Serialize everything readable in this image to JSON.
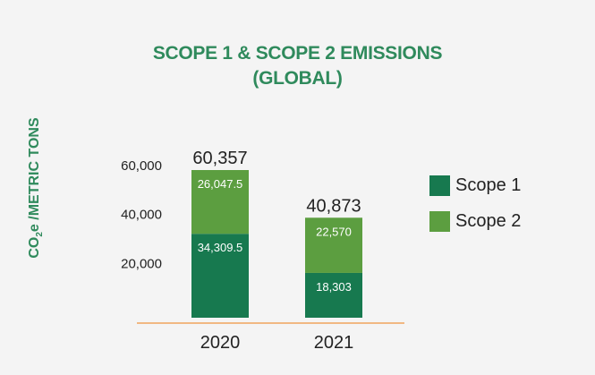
{
  "chart_data": {
    "type": "bar",
    "stacked": true,
    "title_lines": [
      "SCOPE 1 & SCOPE 2 EMISSIONS",
      "(GLOBAL)"
    ],
    "ylabel_main": "CO",
    "ylabel_sub": "2",
    "ylabel_rest": "e /METRIC TONS",
    "xlabel": "",
    "categories": [
      "2020",
      "2021"
    ],
    "yticks": [
      20000,
      40000,
      60000
    ],
    "ytick_labels": [
      "20,000",
      "40,000",
      "60,000"
    ],
    "ylim": [
      0,
      60357
    ],
    "grid": false,
    "legend_placement": "right",
    "series": [
      {
        "name": "Scope 1",
        "values": [
          34309.5,
          18303
        ],
        "labels": [
          "34,309.5",
          "18,303"
        ],
        "color": "#17794f"
      },
      {
        "name": "Scope 2",
        "values": [
          26047.5,
          22570
        ],
        "labels": [
          "26,047.5",
          "22,570"
        ],
        "color": "#5c9e40"
      }
    ],
    "totals": [
      "60,357",
      "40,873"
    ],
    "axis_color": "#f0a35c",
    "title_color": "#2f8a5c"
  }
}
